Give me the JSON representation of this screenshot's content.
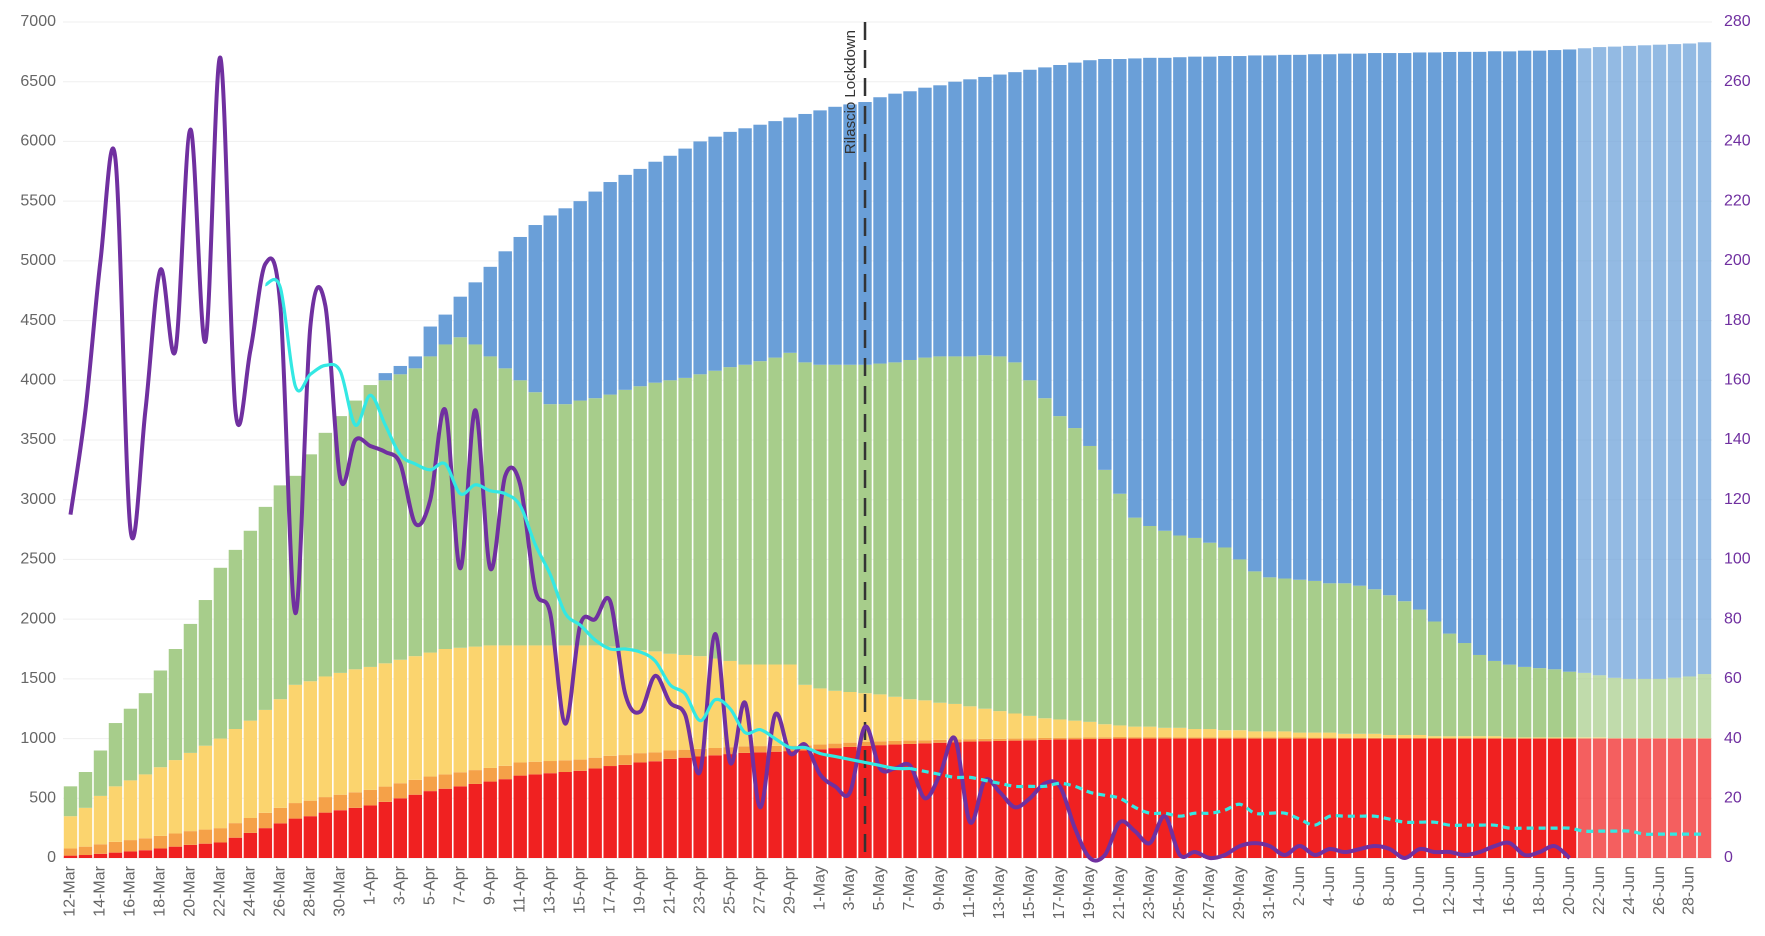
{
  "chart_data": {
    "type": "stacked-bar-line",
    "categories": [
      "12-Mar",
      null,
      "14-Mar",
      null,
      "16-Mar",
      null,
      "18-Mar",
      null,
      "20-Mar",
      null,
      "22-Mar",
      null,
      "24-Mar",
      null,
      "26-Mar",
      null,
      "28-Mar",
      null,
      "30-Mar",
      null,
      "1-Apr",
      null,
      "3-Apr",
      null,
      "5-Apr",
      null,
      "7-Apr",
      null,
      "9-Apr",
      null,
      "11-Apr",
      null,
      "13-Apr",
      null,
      "15-Apr",
      null,
      "17-Apr",
      null,
      "19-Apr",
      null,
      "21-Apr",
      null,
      "23-Apr",
      null,
      "25-Apr",
      null,
      "27-Apr",
      null,
      "29-Apr",
      null,
      "1-May",
      null,
      "3-May",
      null,
      "5-May",
      null,
      "7-May",
      null,
      "9-May",
      null,
      "11-May",
      null,
      "13-May",
      null,
      "15-May",
      null,
      "17-May",
      null,
      "19-May",
      null,
      "21-May",
      null,
      "23-May",
      null,
      "25-May",
      null,
      "27-May",
      null,
      "29-May",
      null,
      "31-May",
      null,
      "2-Jun",
      null,
      "4-Jun",
      null,
      "6-Jun",
      null,
      "8-Jun",
      null,
      "10-Jun",
      null,
      "12-Jun",
      null,
      "14-Jun",
      null,
      "16-Jun",
      null,
      "18-Jun",
      null,
      "20-Jun",
      null,
      "22-Jun",
      null,
      "24-Jun",
      null,
      "26-Jun",
      null,
      "28-Jun",
      null
    ],
    "series": [
      {
        "color": "#f02121",
        "values": [
          20,
          25,
          35,
          45,
          55,
          65,
          80,
          95,
          110,
          120,
          130,
          170,
          210,
          250,
          290,
          330,
          350,
          380,
          400,
          420,
          440,
          470,
          500,
          530,
          560,
          580,
          600,
          620,
          640,
          660,
          690,
          700,
          710,
          720,
          730,
          750,
          770,
          780,
          800,
          810,
          830,
          840,
          850,
          860,
          870,
          880,
          885,
          890,
          895,
          900,
          910,
          920,
          930,
          940,
          945,
          950,
          955,
          960,
          965,
          970,
          975,
          978,
          980,
          983,
          985,
          990,
          992,
          994,
          996,
          998,
          1000,
          1000,
          1000,
          1000,
          1000,
          1000,
          1000,
          1000,
          1000,
          1000,
          1000,
          1000,
          1000,
          1000,
          1000,
          1000,
          1000,
          1000,
          1000,
          1000,
          1000,
          1000,
          1000,
          1000,
          1000,
          1000,
          1000,
          1000,
          1000,
          1000,
          1000,
          1000,
          1000,
          1000,
          1000,
          1000,
          1000,
          1000,
          1000,
          1000
        ]
      },
      {
        "color": "#f5a148",
        "values": [
          60,
          70,
          80,
          90,
          95,
          100,
          105,
          110,
          115,
          118,
          120,
          122,
          125,
          128,
          130,
          130,
          130,
          130,
          130,
          130,
          130,
          128,
          126,
          124,
          122,
          120,
          118,
          116,
          114,
          112,
          110,
          106,
          102,
          98,
          94,
          90,
          86,
          82,
          78,
          74,
          70,
          67,
          64,
          61,
          58,
          55,
          52,
          49,
          46,
          43,
          40,
          38,
          36,
          34,
          32,
          30,
          28,
          26,
          24,
          22,
          20,
          19,
          18,
          17,
          16,
          15,
          15,
          14,
          14,
          13,
          13,
          12,
          12,
          12,
          11,
          11,
          11,
          10,
          10,
          10,
          10,
          9,
          9,
          8,
          8,
          7,
          7,
          6,
          6,
          5,
          5,
          5,
          4,
          4,
          4,
          4,
          3,
          3,
          3,
          3,
          3,
          3,
          3,
          2,
          2,
          2,
          2,
          2,
          2,
          2
        ]
      },
      {
        "color": "#fbd46e",
        "values": [
          270,
          325,
          405,
          465,
          500,
          535,
          575,
          615,
          655,
          702,
          750,
          788,
          815,
          862,
          910,
          990,
          1000,
          1010,
          1020,
          1030,
          1030,
          1032,
          1034,
          1036,
          1038,
          1050,
          1042,
          1034,
          1026,
          1008,
          980,
          974,
          968,
          962,
          956,
          940,
          914,
          898,
          862,
          846,
          810,
          793,
          776,
          749,
          722,
          685,
          683,
          681,
          679,
          507,
          470,
          442,
          424,
          406,
          393,
          370,
          347,
          334,
          311,
          298,
          275,
          253,
          232,
          210,
          189,
          165,
          153,
          142,
          130,
          109,
          97,
          88,
          88,
          78,
          79,
          69,
          69,
          60,
          60,
          50,
          50,
          51,
          41,
          42,
          42,
          33,
          33,
          34,
          24,
          25,
          25,
          15,
          15,
          16,
          16,
          16,
          6,
          7,
          7,
          7,
          7,
          7,
          7,
          2,
          3,
          3,
          3,
          3,
          3,
          3
        ]
      },
      {
        "color": "#a7cd8b",
        "values": [
          250,
          300,
          380,
          530,
          600,
          680,
          810,
          930,
          1080,
          1220,
          1430,
          1500,
          1590,
          1700,
          1790,
          1750,
          1900,
          2040,
          2150,
          2250,
          2360,
          2370,
          2390,
          2410,
          2480,
          2550,
          2600,
          2530,
          2420,
          2320,
          2220,
          2120,
          2020,
          2020,
          2050,
          2070,
          2110,
          2160,
          2210,
          2250,
          2290,
          2320,
          2360,
          2410,
          2460,
          2510,
          2540,
          2570,
          2610,
          2700,
          2710,
          2730,
          2740,
          2750,
          2770,
          2800,
          2840,
          2870,
          2900,
          2910,
          2930,
          2960,
          2970,
          2940,
          2810,
          2680,
          2540,
          2450,
          2310,
          2130,
          1940,
          1750,
          1680,
          1650,
          1610,
          1600,
          1560,
          1530,
          1430,
          1340,
          1290,
          1280,
          1280,
          1270,
          1250,
          1260,
          1240,
          1210,
          1170,
          1120,
          1050,
          960,
          860,
          780,
          680,
          630,
          610,
          590,
          580,
          570,
          550,
          540,
          520,
          505,
          495,
          495,
          495,
          505,
          515,
          535
        ]
      },
      {
        "color": "#6a9fd8",
        "values": [
          0,
          0,
          0,
          0,
          0,
          0,
          0,
          0,
          0,
          0,
          0,
          0,
          0,
          0,
          0,
          0,
          0,
          0,
          0,
          0,
          0,
          60,
          70,
          100,
          250,
          250,
          340,
          520,
          750,
          980,
          1200,
          1400,
          1580,
          1640,
          1670,
          1730,
          1780,
          1800,
          1820,
          1850,
          1880,
          1920,
          1950,
          1960,
          1970,
          1980,
          1980,
          1980,
          1970,
          2080,
          2130,
          2160,
          2180,
          2200,
          2230,
          2250,
          2250,
          2260,
          2270,
          2300,
          2320,
          2330,
          2360,
          2430,
          2600,
          2770,
          2940,
          3060,
          3230,
          3440,
          3640,
          3845,
          3920,
          3960,
          4005,
          4030,
          4070,
          4115,
          4215,
          4320,
          4370,
          4385,
          4395,
          4410,
          4430,
          4435,
          4455,
          4490,
          4540,
          4590,
          4665,
          4765,
          4870,
          4950,
          5050,
          5105,
          5135,
          5160,
          5170,
          5185,
          5210,
          5230,
          5260,
          5285,
          5300,
          5305,
          5310,
          5305,
          5300,
          5290
        ]
      }
    ],
    "forecast_start_index": 101,
    "line_series": [
      {
        "color": "#7030a0",
        "axis": "y2",
        "values": [
          115,
          150,
          200,
          234,
          110,
          150,
          197,
          170,
          244,
          173,
          268,
          150,
          170,
          199,
          185,
          82,
          178,
          185,
          127,
          140,
          138,
          136,
          132,
          112,
          120,
          150,
          97,
          150,
          97,
          128,
          125,
          90,
          82,
          45,
          78,
          80,
          86,
          55,
          49,
          61,
          52,
          48,
          29,
          75,
          32,
          52,
          17,
          48,
          35,
          38,
          28,
          24,
          22,
          44,
          30,
          30,
          31,
          20,
          28,
          40,
          12,
          26,
          22,
          17,
          20,
          25,
          24,
          10,
          0,
          1,
          12,
          9,
          5,
          14,
          1,
          2,
          0,
          1,
          4,
          5,
          4,
          1,
          4,
          1,
          3,
          2,
          3,
          4,
          3,
          0,
          3,
          2,
          2,
          1,
          2,
          4,
          5,
          1,
          2,
          4,
          0,
          null,
          null,
          null,
          null,
          null,
          null,
          null,
          null,
          null
        ]
      },
      {
        "color": "#33e8e3",
        "axis": "y2",
        "dash_from_index": 56,
        "values": [
          null,
          null,
          null,
          null,
          null,
          null,
          null,
          null,
          null,
          null,
          null,
          null,
          null,
          192,
          191,
          158,
          162,
          165,
          163,
          145,
          155,
          145,
          135,
          132,
          130,
          132,
          122,
          125,
          123,
          122,
          118,
          105,
          95,
          82,
          78,
          73,
          70,
          70,
          69,
          66,
          58,
          55,
          46,
          53,
          50,
          42,
          43,
          40,
          37,
          37,
          35,
          34,
          33,
          32,
          31,
          30,
          30,
          29,
          28,
          27,
          27,
          26,
          25,
          24,
          24,
          24,
          25,
          24,
          22,
          21,
          20,
          17,
          15,
          15,
          14,
          15,
          15,
          16,
          18,
          15,
          15,
          15,
          13,
          11,
          14,
          14,
          14,
          14,
          13,
          12,
          12,
          12,
          11,
          11,
          11,
          11,
          10,
          10,
          10,
          10,
          10,
          9,
          9,
          9,
          9,
          8,
          8,
          8,
          8,
          8
        ]
      }
    ],
    "annotations": [
      {
        "text": "Rilascio Lockdown",
        "index": 53
      }
    ],
    "ylim": [
      0,
      7000
    ],
    "yticks": [
      0,
      500,
      1000,
      1500,
      2000,
      2500,
      3000,
      3500,
      4000,
      4500,
      5000,
      5500,
      6000,
      6500,
      7000
    ],
    "y2lim": [
      0,
      280
    ],
    "y2ticks": [
      0,
      20,
      40,
      60,
      80,
      100,
      120,
      140,
      160,
      180,
      200,
      220,
      240,
      260,
      280
    ],
    "grid": true
  }
}
